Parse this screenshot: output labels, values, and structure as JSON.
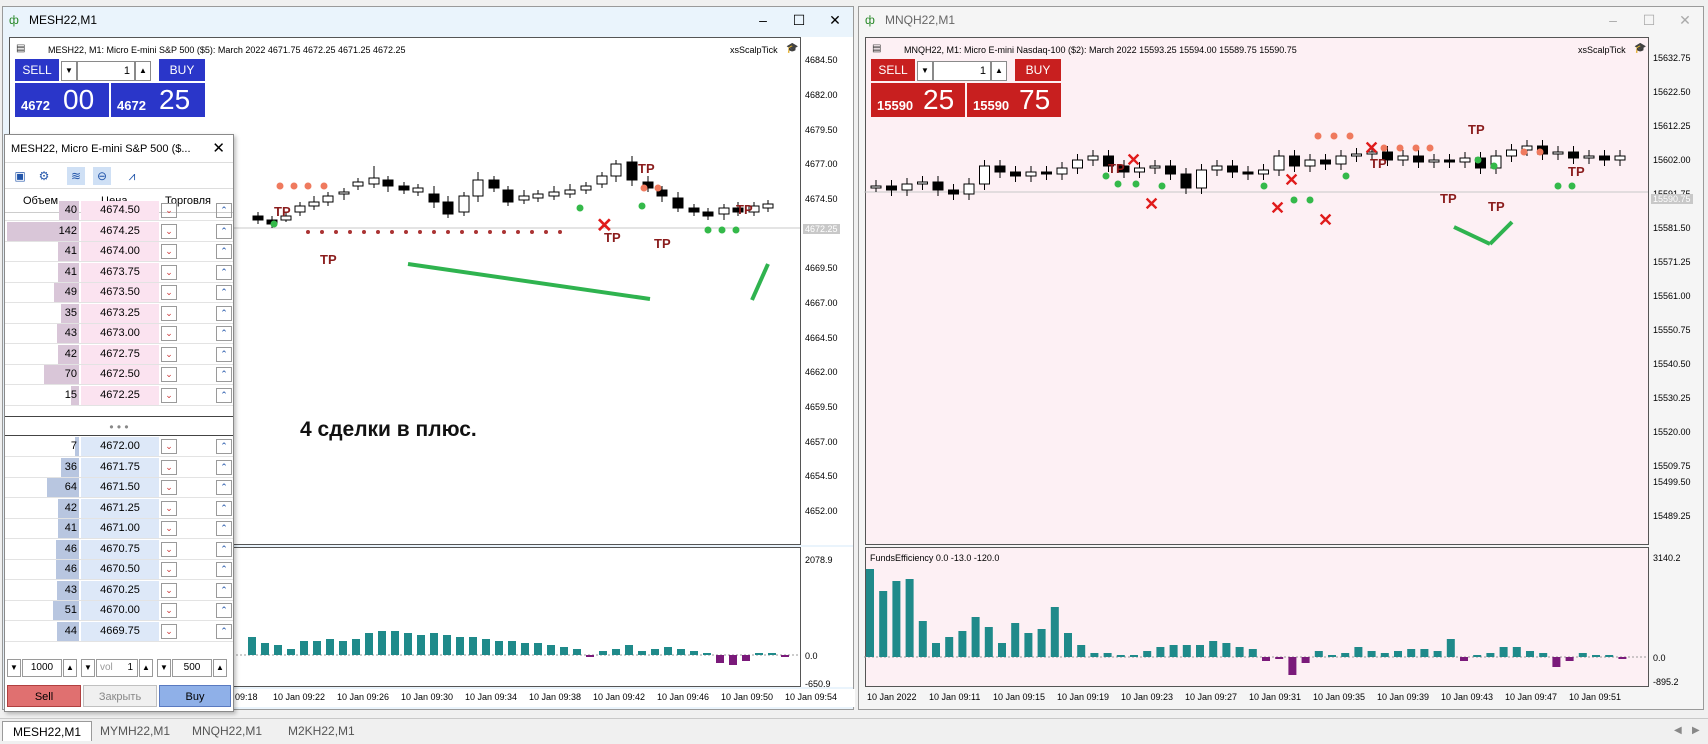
{
  "colors": {
    "sell": "#2a36c9",
    "buy": "#2a36c9",
    "red_panel": "#c81f1f",
    "pink_bg": "#fdf0f4"
  },
  "left_window": {
    "title": "MESH22,M1",
    "info": "MESH22, M1:  Micro E-mini S&P 500 ($5): March 2022   4671.75  4672.25  4671.25  4672.25",
    "indicator": "xsScalpTick",
    "sell_label": "SELL",
    "buy_label": "BUY",
    "lot": "1",
    "sell_small": "4672",
    "sell_big": "00",
    "buy_small": "4672",
    "buy_big": "25",
    "prices": [
      "4684.50",
      "4682.00",
      "4679.50",
      "4677.00",
      "4674.50",
      "4672.25",
      "4669.50",
      "4667.00",
      "4664.50",
      "4662.00",
      "4659.50",
      "4657.00",
      "4654.50",
      "4652.00"
    ],
    "sub_scale": [
      "2078.9",
      "0.0",
      "-650.9"
    ],
    "times": [
      "09:18",
      "10 Jan 09:22",
      "10 Jan 09:26",
      "10 Jan 09:30",
      "10 Jan 09:34",
      "10 Jan 09:38",
      "10 Jan 09:42",
      "10 Jan 09:46",
      "10 Jan 09:50",
      "10 Jan 09:54"
    ],
    "annotation": "4 сделки в плюс.",
    "tp": "TP"
  },
  "right_window": {
    "title": "MNQH22,M1",
    "info": "MNQH22, M1:  Micro E-mini Nasdaq-100 ($2): March 2022   15593.25  15594.00  15589.75  15590.75",
    "indicator": "xsScalpTick",
    "sell_label": "SELL",
    "buy_label": "BUY",
    "lot": "1",
    "sell_small": "15590",
    "sell_big": "25",
    "buy_small": "15590",
    "buy_big": "75",
    "prices": [
      "15632.75",
      "15622.50",
      "15612.25",
      "15602.00",
      "15591.75",
      "15590.75",
      "15581.50",
      "15571.25",
      "15561.00",
      "15550.75",
      "15540.50",
      "15530.25",
      "15520.00",
      "15509.75",
      "15499.50",
      "15489.25"
    ],
    "sub_label": "FundsEfficiency 0.0 -13.0 -120.0",
    "sub_scale": [
      "3140.2",
      "0.0",
      "-895.2"
    ],
    "times": [
      "10 Jan 2022",
      "10 Jan 09:11",
      "10 Jan 09:15",
      "10 Jan 09:19",
      "10 Jan 09:23",
      "10 Jan 09:27",
      "10 Jan 09:31",
      "10 Jan 09:35",
      "10 Jan 09:39",
      "10 Jan 09:43",
      "10 Jan 09:47",
      "10 Jan 09:51"
    ],
    "tp": "TP"
  },
  "dom": {
    "title": "MESH22, Micro E-mini S&P 500 ($...",
    "col_volume": "Объем",
    "col_price": "Цена",
    "col_trade": "Торговля",
    "asks": [
      {
        "vol": "40",
        "price": "4674.50"
      },
      {
        "vol": "142",
        "price": "4674.25"
      },
      {
        "vol": "41",
        "price": "4674.00"
      },
      {
        "vol": "41",
        "price": "4673.75"
      },
      {
        "vol": "49",
        "price": "4673.50"
      },
      {
        "vol": "35",
        "price": "4673.25"
      },
      {
        "vol": "43",
        "price": "4673.00"
      },
      {
        "vol": "42",
        "price": "4672.75"
      },
      {
        "vol": "70",
        "price": "4672.50"
      },
      {
        "vol": "15",
        "price": "4672.25"
      }
    ],
    "bids": [
      {
        "vol": "7",
        "price": "4672.00"
      },
      {
        "vol": "36",
        "price": "4671.75"
      },
      {
        "vol": "64",
        "price": "4671.50"
      },
      {
        "vol": "42",
        "price": "4671.25"
      },
      {
        "vol": "41",
        "price": "4671.00"
      },
      {
        "vol": "46",
        "price": "4670.75"
      },
      {
        "vol": "46",
        "price": "4670.50"
      },
      {
        "vol": "43",
        "price": "4670.25"
      },
      {
        "vol": "51",
        "price": "4670.00"
      },
      {
        "vol": "44",
        "price": "4669.75"
      }
    ],
    "separator": "• • •",
    "qty1": "1000",
    "vol_label": "vol",
    "vol_value": "1",
    "qty2": "500",
    "sell": "Sell",
    "close": "Закрыть",
    "buy": "Buy"
  },
  "tabs": [
    "MESH22,M1",
    "MYMH22,M1",
    "MNQH22,M1",
    "M2KH22,M1"
  ]
}
